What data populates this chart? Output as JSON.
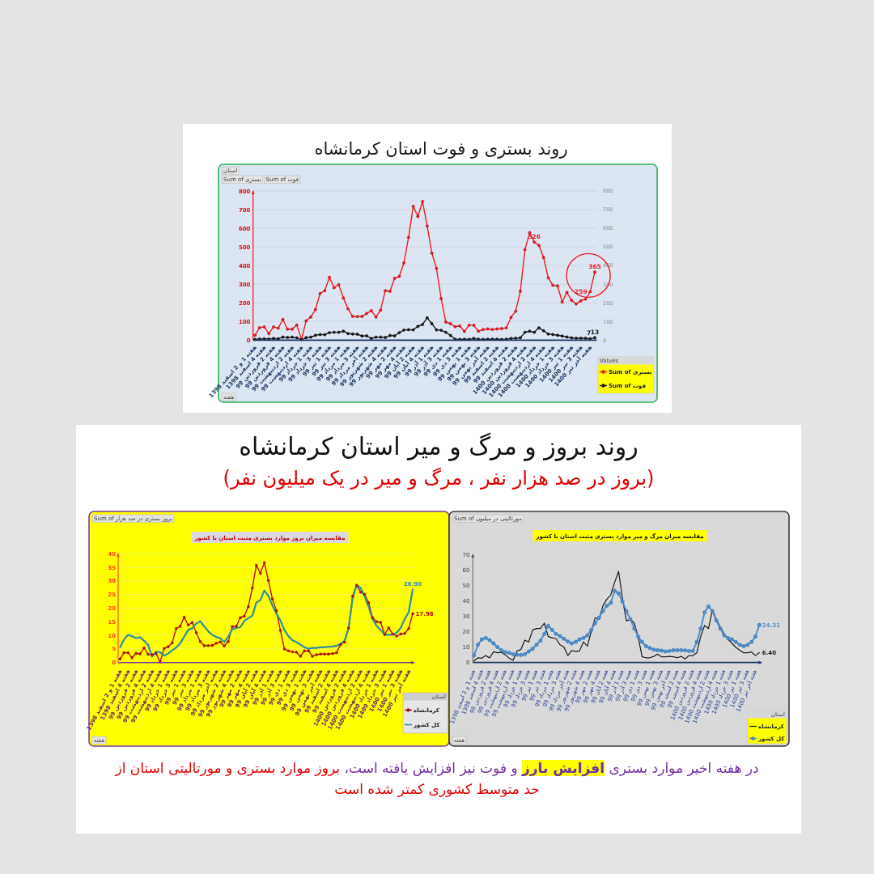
{
  "chart_data": [
    {
      "type": "line",
      "title": "روند بستری و فوت استان کرمانشاه",
      "categories": [
        "هفته 1 و 2 اسفند 1398",
        null,
        "هفته 4 اسفند 1398",
        null,
        "هفته 2 فروردین 99",
        null,
        "هفته 4 فروردین 99",
        null,
        "هفته 2 اردیبهشت 99",
        null,
        "هفته 4 اردیبهشت 99",
        null,
        "هفته 1 خرداد 99",
        null,
        "هفته 3 خرداد 99",
        null,
        "هفته 1 تیر 99",
        null,
        "هفته 3 تیر 99",
        null,
        "هفته 1 مرداد 99",
        null,
        "هفته 3 مرداد 99",
        null,
        "هفته آخر مرداد 99",
        null,
        "هفته 2 شهریور 99",
        null,
        "هفته 4 شهریور 99",
        null,
        "هفته 2 مهر 99",
        null,
        "هفته 4 مهر 99",
        null,
        "هفته 2 آبان 99",
        null,
        "هفته 4 آبان 99",
        null,
        "هفته 1 آذر 99",
        null,
        "هفته 3 آذر 99",
        null,
        "هفته 1 دی 99",
        null,
        "هفته 3 دی 99",
        null,
        "هفته 1 بهمن 99",
        null,
        "هفته 3 بهمن 99",
        null,
        "هفته آخر بهمن 99",
        null,
        "هفته 2 اسفند 99",
        null,
        "هفته 4 اسفند 99",
        null,
        "هفته 2 فروردین 1400",
        null,
        "هفته 4 فروردین 1400",
        null,
        "هفته 2 اردیبهشت 1400",
        null,
        "هفته 4 اردیبهشت 1400",
        null,
        "هفته 1 خرداد 1400",
        null,
        "هفته 3 خرداد 1400",
        null,
        "هفته 1 تیر 1400",
        null,
        "هفته 3 تیر 1400",
        null,
        "هفته آخر تیر 1400",
        null
      ],
      "series": [
        {
          "name": "Sum of بستری",
          "color": "#ee1c25",
          "values": [
            26,
            67,
            71,
            35,
            71,
            64,
            111,
            59,
            59,
            81,
            4,
            103,
            124,
            164,
            250,
            265,
            337,
            281,
            298,
            226,
            168,
            127,
            126,
            127,
            143,
            158,
            124,
            161,
            265,
            262,
            331,
            342,
            414,
            551,
            718,
            663,
            744,
            612,
            467,
            385,
            223,
            97,
            88,
            72,
            76,
            47,
            80,
            80,
            48,
            57,
            60,
            57,
            60,
            62,
            66,
            122,
            155,
            262,
            485,
            577,
            526,
            508,
            443,
            334,
            294,
            291,
            204,
            256,
            214,
            194,
            211,
            220,
            259,
            365
          ],
          "value_labels": [
            null,
            null,
            null,
            null,
            null,
            null,
            null,
            null,
            null,
            null,
            null,
            null,
            null,
            null,
            null,
            null,
            null,
            null,
            null,
            null,
            null,
            null,
            null,
            null,
            null,
            null,
            null,
            null,
            null,
            null,
            null,
            null,
            null,
            null,
            null,
            null,
            null,
            null,
            null,
            null,
            null,
            null,
            null,
            null,
            null,
            null,
            null,
            null,
            null,
            null,
            null,
            null,
            null,
            null,
            null,
            null,
            null,
            null,
            null,
            null,
            "526",
            null,
            null,
            null,
            null,
            null,
            null,
            null,
            null,
            null,
            null,
            null,
            "259",
            "365"
          ]
        },
        {
          "name": "Sum of فوت",
          "color": "#1c1c1c",
          "values": [
            4,
            6,
            7,
            6,
            9,
            7,
            16,
            14,
            16,
            12,
            3,
            13,
            16,
            26,
            30,
            29,
            40,
            42,
            42,
            48,
            35,
            33,
            32,
            22,
            23,
            9,
            16,
            16,
            14,
            25,
            23,
            40,
            54,
            56,
            55,
            74,
            84,
            120,
            88,
            55,
            53,
            42,
            25,
            5,
            4,
            5,
            4,
            9,
            5,
            4,
            5,
            5,
            5,
            4,
            5,
            9,
            10,
            12,
            42,
            48,
            42,
            66,
            50,
            33,
            30,
            26,
            22,
            17,
            12,
            10,
            10,
            10,
            7,
            13
          ],
          "value_labels": [
            null,
            null,
            null,
            null,
            null,
            null,
            null,
            null,
            null,
            null,
            null,
            null,
            null,
            null,
            null,
            null,
            null,
            null,
            null,
            null,
            null,
            null,
            null,
            null,
            null,
            null,
            null,
            null,
            null,
            null,
            null,
            null,
            null,
            null,
            null,
            null,
            null,
            null,
            null,
            null,
            null,
            null,
            null,
            null,
            null,
            null,
            null,
            null,
            null,
            null,
            null,
            null,
            null,
            null,
            null,
            null,
            null,
            null,
            null,
            null,
            null,
            null,
            null,
            null,
            null,
            null,
            null,
            null,
            null,
            null,
            null,
            null,
            "7",
            "13"
          ]
        }
      ],
      "ylim": [
        0,
        800
      ],
      "yticks": [
        0,
        100,
        200,
        300,
        400,
        500,
        600,
        700,
        800
      ],
      "y2lim": [
        0,
        800
      ],
      "y2ticks": [
        0,
        100,
        200,
        300,
        400,
        500,
        600,
        700,
        800
      ],
      "grid": "y",
      "legend": "bottom right",
      "legend_title": "Values",
      "marker": "circle",
      "annotations": [
        "استان",
        "هفته"
      ]
    },
    {
      "type": "line",
      "title": "مقایسه میزان بروز موارد بستری مثبت استان با کشور",
      "categories": [
        "هفته 1 و 2 اسفند 1398",
        null,
        "هفته 4 اسفند 1398",
        null,
        "هفته 2 فروردین 99",
        null,
        "هفته 4 فروردین 99",
        null,
        "هفته 2 اردیبهشت 99",
        null,
        "هفته 4 اردیبهشت 99",
        null,
        "هفته 1 خرداد 99",
        null,
        "هفته 3 خرداد 99",
        null,
        "هفته 1 تیر 99",
        null,
        "هفته 3 تیر 99",
        null,
        "هفته 1 مرداد 99",
        null,
        "هفته 3 مرداد 99",
        null,
        "هفته آخر مرداد 99",
        null,
        "هفته 2 شهریور 99",
        null,
        "هفته 4 شهریور 99",
        null,
        "هفته 2 مهر 99",
        null,
        "هفته 4 مهر 99",
        null,
        "هفته 2 آبان 99",
        null,
        "هفته 4 آبان 99",
        null,
        "هفته 1 آذر 99",
        null,
        "هفته 3 آذر 99",
        null,
        "هفته 1 دی 99",
        null,
        "هفته 3 دی 99",
        null,
        "هفته 1 بهمن 99",
        null,
        "هفته 3 بهمن 99",
        null,
        "هفته آخر بهمن 99",
        null,
        "هفته 2 اسفند 99",
        null,
        "هفته 4 اسفند 99",
        null,
        "هفته 2 فروردین 1400",
        null,
        "هفته 4 فروردین 1400",
        null,
        "هفته 2 اردیبهشت 1400",
        null,
        "هفته 4 اردیبهشت 1400",
        null,
        "هفته 1 خرداد 1400",
        null,
        "هفته 3 خرداد 1400",
        null,
        "هفته 1 تیر 1400",
        null,
        "هفته 3 تیر 1400",
        null,
        "هفته آخر تیر 1400",
        null
      ],
      "series": [
        {
          "name": "کرمانشاه",
          "color": "#c0101a",
          "marker": "circle",
          "values": [
            1.3,
            3.6,
            3.6,
            1.8,
            3.4,
            3.2,
            5.4,
            3.0,
            2.9,
            3.3,
            0.2,
            5.2,
            5.8,
            7.2,
            12.5,
            13.3,
            16.7,
            13.8,
            14.7,
            11.0,
            7.7,
            6.2,
            6.2,
            6.3,
            7.1,
            7.6,
            6.1,
            7.7,
            13.2,
            13.3,
            16.5,
            17.1,
            20.5,
            27.4,
            35.8,
            32.8,
            36.7,
            30.2,
            23.4,
            19.0,
            11.8,
            5.0,
            4.3,
            3.9,
            3.8,
            2.3,
            4.3,
            4.3,
            2.3,
            2.9,
            3.1,
            3.1,
            3.1,
            3.3,
            3.6,
            6.6,
            7.5,
            12.7,
            24.4,
            28.4,
            25.9,
            25.1,
            22.0,
            16.5,
            15.0,
            14.8,
            10.3,
            12.8,
            10.5,
            9.7,
            10.5,
            10.7,
            12.5,
            17.98
          ],
          "value_labels": [
            null,
            null,
            null,
            null,
            null,
            null,
            null,
            null,
            null,
            null,
            null,
            null,
            null,
            null,
            null,
            null,
            null,
            null,
            null,
            null,
            null,
            null,
            null,
            null,
            null,
            null,
            null,
            null,
            null,
            null,
            null,
            null,
            null,
            null,
            null,
            null,
            null,
            null,
            null,
            null,
            null,
            null,
            null,
            null,
            null,
            null,
            null,
            null,
            null,
            null,
            null,
            null,
            null,
            null,
            null,
            null,
            null,
            null,
            null,
            null,
            null,
            null,
            null,
            null,
            null,
            null,
            null,
            null,
            null,
            null,
            null,
            null,
            null,
            "17.98"
          ]
        },
        {
          "name": "کل کشور",
          "color": "#2f8fa5",
          "marker": "none",
          "values": [
            5.6,
            8.5,
            10.2,
            9.7,
            9.0,
            9.3,
            8.0,
            6.5,
            2.2,
            4.0,
            3.8,
            2.5,
            3.3,
            4.5,
            5.5,
            7.0,
            9.5,
            12.0,
            12.6,
            14.3,
            15.2,
            13.3,
            11.5,
            10.2,
            9.4,
            9.0,
            7.5,
            9.5,
            12.3,
            12.7,
            13.0,
            15.3,
            16.3,
            17.2,
            22.0,
            23.0,
            26.5,
            24.5,
            21.0,
            18.0,
            15.5,
            12.0,
            9.7,
            8.2,
            7.5,
            6.6,
            5.6,
            5.1,
            5.4,
            5.4,
            5.6,
            5.6,
            5.8,
            5.9,
            6.1,
            6.8,
            8.0,
            12.5,
            23.4,
            28.6,
            27.4,
            24.4,
            20.5,
            16.0,
            13.5,
            12.0,
            10.3,
            10.2,
            10.3,
            11.0,
            12.7,
            16.0,
            18.5,
            26.9
          ],
          "value_labels": [
            null,
            null,
            null,
            null,
            null,
            null,
            null,
            null,
            null,
            null,
            null,
            null,
            null,
            null,
            null,
            null,
            null,
            null,
            null,
            null,
            null,
            null,
            null,
            null,
            null,
            null,
            null,
            null,
            null,
            null,
            null,
            null,
            null,
            null,
            null,
            null,
            null,
            null,
            null,
            null,
            null,
            null,
            null,
            null,
            null,
            null,
            null,
            null,
            null,
            null,
            null,
            null,
            null,
            null,
            null,
            null,
            null,
            null,
            null,
            null,
            null,
            null,
            null,
            null,
            null,
            null,
            null,
            null,
            null,
            null,
            null,
            null,
            null,
            "26.90"
          ]
        }
      ],
      "ylim": [
        0,
        40
      ],
      "yticks": [
        0,
        5,
        10,
        15,
        20,
        25,
        30,
        35,
        40
      ],
      "grid": "y",
      "legend": "bottom right",
      "legend_title": "استان",
      "annotations": [
        "روند بروز و مرگ و میر استان کرمانشاه",
        "(بروز در صد هزار نفر ، مرگ و میر در یک میلیون نفر)",
        "Sum of بروز بستری در صد هزار",
        "هفته"
      ]
    },
    {
      "type": "line",
      "title": "مقایسه میزان مرگ و میر موارد بستری مثبت استان با کشور",
      "categories": [
        "هفته 1 و 2 اسفند 1398",
        null,
        "هفته 4 اسفند 1398",
        null,
        "هفته 2 فروردین 99",
        null,
        "هفته 4 فروردین 99",
        null,
        "هفته 2 اردیبهشت 99",
        null,
        "هفته 4 اردیبهشت 99",
        null,
        "هفته 1 خرداد 99",
        null,
        "هفته 3 خرداد 99",
        null,
        "هفته 1 تیر 99",
        null,
        "هفته 3 تیر 99",
        null,
        "هفته 1 مرداد 99",
        null,
        "هفته 3 مرداد 99",
        null,
        "هفته آخر مرداد 99",
        null,
        "هفته 2 شهریور 99",
        null,
        "هفته 4 شهریور 99",
        null,
        "هفته 2 مهر 99",
        null,
        "هفته 4 مهر 99",
        null,
        "هفته 2 آبان 99",
        null,
        "هفته 4 آبان 99",
        null,
        "هفته 1 آذر 99",
        null,
        "هفته 3 آذر 99",
        null,
        "هفته 1 دی 99",
        null,
        "هفته 3 دی 99",
        null,
        "هفته 1 بهمن 99",
        null,
        "هفته 3 بهمن 99",
        null,
        "هفته آخر بهمن 99",
        null,
        "هفته 2 اسفند 99",
        null,
        "هفته 4 اسفند 99",
        null,
        "هفته 2 فروردین 1400",
        null,
        "هفته 4 فروردین 1400",
        null,
        "هفته 2 اردیبهشت 1400",
        null,
        "هفته 4 اردیبهشت 1400",
        null,
        "هفته 1 خرداد 1400",
        null,
        "هفته 3 خرداد 1400",
        null,
        "هفته 1 تیر 1400",
        null,
        "هفته 3 تیر 1400",
        null,
        "هفته آخر تیر 1400",
        null
      ],
      "series": [
        {
          "name": "کرمانشاه",
          "color": "#1a1a1a",
          "marker": "none",
          "values": [
            1,
            3,
            2.8,
            4.5,
            3,
            7,
            6.3,
            6.6,
            5,
            2.8,
            1.4,
            7.5,
            8.4,
            14.5,
            13.3,
            21,
            22,
            22,
            25.5,
            16.8,
            16,
            15.4,
            11.5,
            10.1,
            4.5,
            7.7,
            7.2,
            7.5,
            13.3,
            10.6,
            20,
            29,
            28,
            36.8,
            41,
            43.8,
            52,
            59,
            41,
            27,
            28,
            25.5,
            16.8,
            3.7,
            3.1,
            3.1,
            4,
            5.4,
            3.7,
            3.7,
            4,
            3.7,
            3.1,
            4,
            2.3,
            4.5,
            4.5,
            6.3,
            17,
            24,
            22,
            34,
            28,
            23,
            18.5,
            15,
            12.4,
            9.8,
            8,
            6.3,
            6.3,
            6.8,
            4.5,
            6.4
          ],
          "value_labels": [
            null,
            null,
            null,
            null,
            null,
            null,
            null,
            null,
            null,
            null,
            null,
            null,
            null,
            null,
            null,
            null,
            null,
            null,
            null,
            null,
            null,
            null,
            null,
            null,
            null,
            null,
            null,
            null,
            null,
            null,
            null,
            null,
            null,
            null,
            null,
            null,
            null,
            null,
            null,
            null,
            null,
            null,
            null,
            null,
            null,
            null,
            null,
            null,
            null,
            null,
            null,
            null,
            null,
            null,
            null,
            null,
            null,
            null,
            null,
            null,
            null,
            null,
            null,
            null,
            null,
            null,
            null,
            null,
            null,
            null,
            null,
            null,
            null,
            "6.40"
          ]
        },
        {
          "name": "کل کشور",
          "color": "#4f8fcf",
          "marker": "circle",
          "values": [
            4.5,
            11.5,
            15,
            15.9,
            14.5,
            12.4,
            10.1,
            8,
            6.8,
            6.3,
            5.4,
            5.1,
            4.9,
            5.4,
            7.2,
            8.9,
            11.5,
            14.1,
            18.5,
            23.7,
            21.1,
            18.5,
            17.1,
            15.4,
            13.6,
            12.4,
            13.3,
            15,
            15.9,
            17.6,
            21.1,
            25.5,
            29,
            33.3,
            36.8,
            38.6,
            46.4,
            44.7,
            39.4,
            33.3,
            28,
            22,
            16.8,
            13.3,
            10.6,
            9.4,
            8.4,
            8,
            7.7,
            7.2,
            7.5,
            8,
            8,
            8,
            7.9,
            7.5,
            7.5,
            13.3,
            22,
            32.5,
            36.3,
            33.3,
            27.2,
            22,
            17.6,
            15.9,
            15,
            13.3,
            11.5,
            10.6,
            11.5,
            13.3,
            16.8,
            24.31
          ],
          "value_labels": [
            null,
            null,
            null,
            null,
            null,
            null,
            null,
            null,
            null,
            null,
            null,
            null,
            null,
            null,
            null,
            null,
            null,
            null,
            null,
            null,
            null,
            null,
            null,
            null,
            null,
            null,
            null,
            null,
            null,
            null,
            null,
            null,
            null,
            null,
            null,
            null,
            null,
            null,
            null,
            null,
            null,
            null,
            null,
            null,
            null,
            null,
            null,
            null,
            null,
            null,
            null,
            null,
            null,
            null,
            null,
            null,
            null,
            null,
            null,
            null,
            null,
            null,
            null,
            null,
            null,
            null,
            null,
            null,
            null,
            null,
            null,
            null,
            null,
            "24.31"
          ]
        }
      ],
      "ylim": [
        0,
        70
      ],
      "yticks": [
        0,
        10,
        20,
        30,
        40,
        50,
        60,
        70
      ],
      "legend": "bottom right",
      "legend_title": "استان",
      "annotations": [
        "Sum of مورتالیتی در میلیون",
        "هفته",
        "در هفته اخیر موارد بستری **افزایش بارز** و فوت نیز افزایش یافته است،",
        "بروز موارد بستری و مورتالیتی استان از حد متوسط کشوری کمتر شده است"
      ]
    }
  ]
}
